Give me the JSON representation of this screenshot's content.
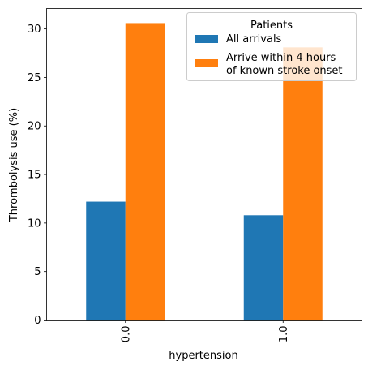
{
  "chart_data": {
    "type": "bar",
    "categories": [
      "0.0",
      "1.0"
    ],
    "series": [
      {
        "name": "All arrivals",
        "values": [
          12.2,
          10.8
        ],
        "color": "#1f77b4"
      },
      {
        "name": "Arrive within 4 hours of known stroke onset",
        "name_lines": [
          "Arrive within 4 hours",
          "of known stroke onset"
        ],
        "values": [
          30.6,
          28.1
        ],
        "color": "#ff7f0e"
      }
    ],
    "xlabel": "hypertension",
    "ylabel": "Thrombolysis use (%)",
    "ylim": [
      0,
      32.1
    ],
    "yticks": [
      0,
      5,
      10,
      15,
      20,
      25,
      30
    ],
    "legend": {
      "title": "Patients",
      "placement": "top-right"
    },
    "grid": false
  }
}
